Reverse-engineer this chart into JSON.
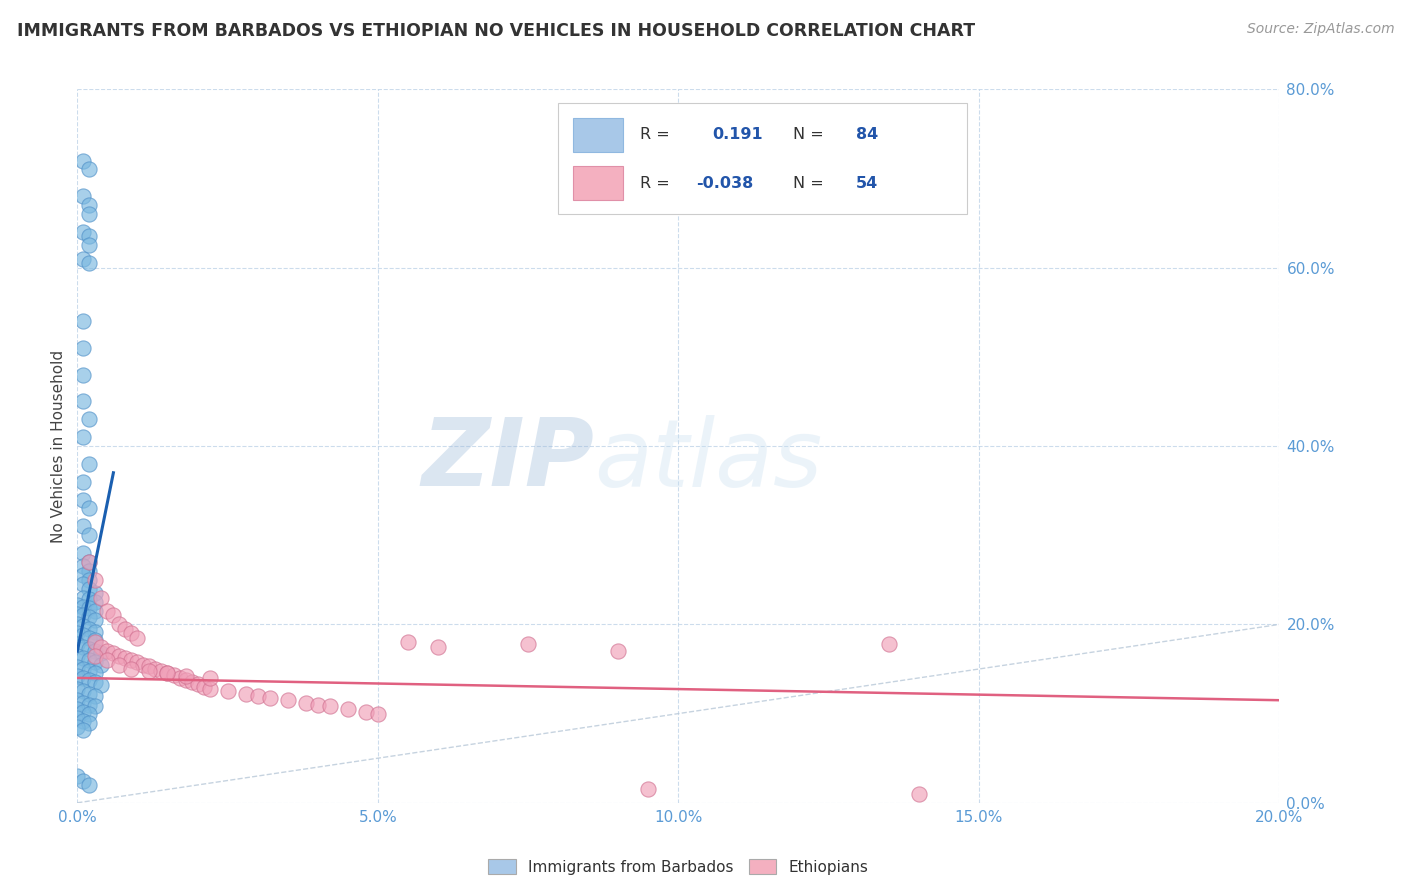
{
  "title": "IMMIGRANTS FROM BARBADOS VS ETHIOPIAN NO VEHICLES IN HOUSEHOLD CORRELATION CHART",
  "source": "Source: ZipAtlas.com",
  "xlabel_range": [
    0.0,
    0.2
  ],
  "ylabel_range": [
    0.0,
    0.8
  ],
  "ylabel_label": "No Vehicles in Household",
  "xtick_vals": [
    0.0,
    0.05,
    0.1,
    0.15,
    0.2
  ],
  "ytick_vals": [
    0.0,
    0.2,
    0.4,
    0.6,
    0.8
  ],
  "legend_bottom": [
    "Immigrants from Barbados",
    "Ethiopians"
  ],
  "legend_bottom_colors": [
    "#a8c8e8",
    "#f4b0c0"
  ],
  "barbados_color": "#7ab8e0",
  "ethiopians_color": "#f0a0b8",
  "trendline_barbados_color": "#1a5fb0",
  "trendline_ethiopians_color": "#e06080",
  "trendline_dashed_color": "#b8c8d8",
  "watermark_zip": "ZIP",
  "watermark_atlas": "atlas",
  "barbados_points": [
    [
      0.001,
      0.72
    ],
    [
      0.002,
      0.71
    ],
    [
      0.001,
      0.68
    ],
    [
      0.002,
      0.67
    ],
    [
      0.002,
      0.66
    ],
    [
      0.001,
      0.64
    ],
    [
      0.002,
      0.635
    ],
    [
      0.002,
      0.625
    ],
    [
      0.001,
      0.61
    ],
    [
      0.002,
      0.605
    ],
    [
      0.001,
      0.54
    ],
    [
      0.001,
      0.51
    ],
    [
      0.001,
      0.48
    ],
    [
      0.001,
      0.45
    ],
    [
      0.002,
      0.43
    ],
    [
      0.001,
      0.41
    ],
    [
      0.002,
      0.38
    ],
    [
      0.001,
      0.36
    ],
    [
      0.001,
      0.34
    ],
    [
      0.002,
      0.33
    ],
    [
      0.001,
      0.31
    ],
    [
      0.002,
      0.3
    ],
    [
      0.001,
      0.28
    ],
    [
      0.002,
      0.27
    ],
    [
      0.001,
      0.265
    ],
    [
      0.002,
      0.26
    ],
    [
      0.001,
      0.255
    ],
    [
      0.002,
      0.25
    ],
    [
      0.001,
      0.245
    ],
    [
      0.002,
      0.24
    ],
    [
      0.003,
      0.235
    ],
    [
      0.001,
      0.23
    ],
    [
      0.002,
      0.228
    ],
    [
      0.003,
      0.225
    ],
    [
      0.0,
      0.222
    ],
    [
      0.001,
      0.22
    ],
    [
      0.002,
      0.218
    ],
    [
      0.003,
      0.215
    ],
    [
      0.0,
      0.212
    ],
    [
      0.001,
      0.21
    ],
    [
      0.002,
      0.208
    ],
    [
      0.003,
      0.205
    ],
    [
      0.0,
      0.2
    ],
    [
      0.001,
      0.198
    ],
    [
      0.002,
      0.195
    ],
    [
      0.003,
      0.192
    ],
    [
      0.0,
      0.19
    ],
    [
      0.001,
      0.188
    ],
    [
      0.002,
      0.185
    ],
    [
      0.003,
      0.182
    ],
    [
      0.0,
      0.178
    ],
    [
      0.001,
      0.175
    ],
    [
      0.002,
      0.172
    ],
    [
      0.003,
      0.17
    ],
    [
      0.004,
      0.168
    ],
    [
      0.0,
      0.165
    ],
    [
      0.001,
      0.162
    ],
    [
      0.002,
      0.16
    ],
    [
      0.003,
      0.158
    ],
    [
      0.004,
      0.155
    ],
    [
      0.0,
      0.152
    ],
    [
      0.001,
      0.15
    ],
    [
      0.002,
      0.148
    ],
    [
      0.003,
      0.145
    ],
    [
      0.0,
      0.142
    ],
    [
      0.001,
      0.14
    ],
    [
      0.002,
      0.138
    ],
    [
      0.003,
      0.135
    ],
    [
      0.004,
      0.132
    ],
    [
      0.0,
      0.128
    ],
    [
      0.001,
      0.125
    ],
    [
      0.002,
      0.122
    ],
    [
      0.003,
      0.12
    ],
    [
      0.0,
      0.115
    ],
    [
      0.001,
      0.112
    ],
    [
      0.002,
      0.11
    ],
    [
      0.003,
      0.108
    ],
    [
      0.0,
      0.105
    ],
    [
      0.001,
      0.102
    ],
    [
      0.002,
      0.1
    ],
    [
      0.0,
      0.095
    ],
    [
      0.001,
      0.092
    ],
    [
      0.002,
      0.09
    ],
    [
      0.0,
      0.085
    ],
    [
      0.001,
      0.082
    ],
    [
      0.0,
      0.03
    ],
    [
      0.001,
      0.025
    ],
    [
      0.002,
      0.02
    ]
  ],
  "ethiopians_points": [
    [
      0.002,
      0.27
    ],
    [
      0.003,
      0.25
    ],
    [
      0.004,
      0.23
    ],
    [
      0.005,
      0.215
    ],
    [
      0.006,
      0.21
    ],
    [
      0.007,
      0.2
    ],
    [
      0.008,
      0.195
    ],
    [
      0.009,
      0.19
    ],
    [
      0.01,
      0.185
    ],
    [
      0.003,
      0.18
    ],
    [
      0.004,
      0.175
    ],
    [
      0.005,
      0.17
    ],
    [
      0.006,
      0.168
    ],
    [
      0.007,
      0.165
    ],
    [
      0.008,
      0.162
    ],
    [
      0.009,
      0.16
    ],
    [
      0.01,
      0.158
    ],
    [
      0.011,
      0.155
    ],
    [
      0.012,
      0.153
    ],
    [
      0.013,
      0.15
    ],
    [
      0.014,
      0.148
    ],
    [
      0.015,
      0.145
    ],
    [
      0.016,
      0.143
    ],
    [
      0.017,
      0.14
    ],
    [
      0.018,
      0.138
    ],
    [
      0.019,
      0.135
    ],
    [
      0.02,
      0.133
    ],
    [
      0.021,
      0.13
    ],
    [
      0.022,
      0.128
    ],
    [
      0.025,
      0.125
    ],
    [
      0.028,
      0.122
    ],
    [
      0.03,
      0.12
    ],
    [
      0.032,
      0.118
    ],
    [
      0.035,
      0.115
    ],
    [
      0.038,
      0.112
    ],
    [
      0.04,
      0.11
    ],
    [
      0.042,
      0.108
    ],
    [
      0.045,
      0.105
    ],
    [
      0.048,
      0.102
    ],
    [
      0.05,
      0.1
    ],
    [
      0.003,
      0.165
    ],
    [
      0.005,
      0.16
    ],
    [
      0.007,
      0.155
    ],
    [
      0.009,
      0.15
    ],
    [
      0.012,
      0.148
    ],
    [
      0.015,
      0.145
    ],
    [
      0.018,
      0.142
    ],
    [
      0.022,
      0.14
    ],
    [
      0.055,
      0.18
    ],
    [
      0.06,
      0.175
    ],
    [
      0.075,
      0.178
    ],
    [
      0.09,
      0.17
    ],
    [
      0.095,
      0.015
    ],
    [
      0.135,
      0.178
    ],
    [
      0.14,
      0.01
    ]
  ],
  "barbados_trendline_x": [
    0.0,
    0.006
  ],
  "barbados_trendline_y": [
    0.17,
    0.37
  ],
  "ethiopians_trendline_x": [
    0.0,
    0.2
  ],
  "ethiopians_trendline_y": [
    0.14,
    0.115
  ],
  "dashed_line_x": [
    0.0,
    0.8
  ],
  "dashed_line_y": [
    0.0,
    0.8
  ]
}
